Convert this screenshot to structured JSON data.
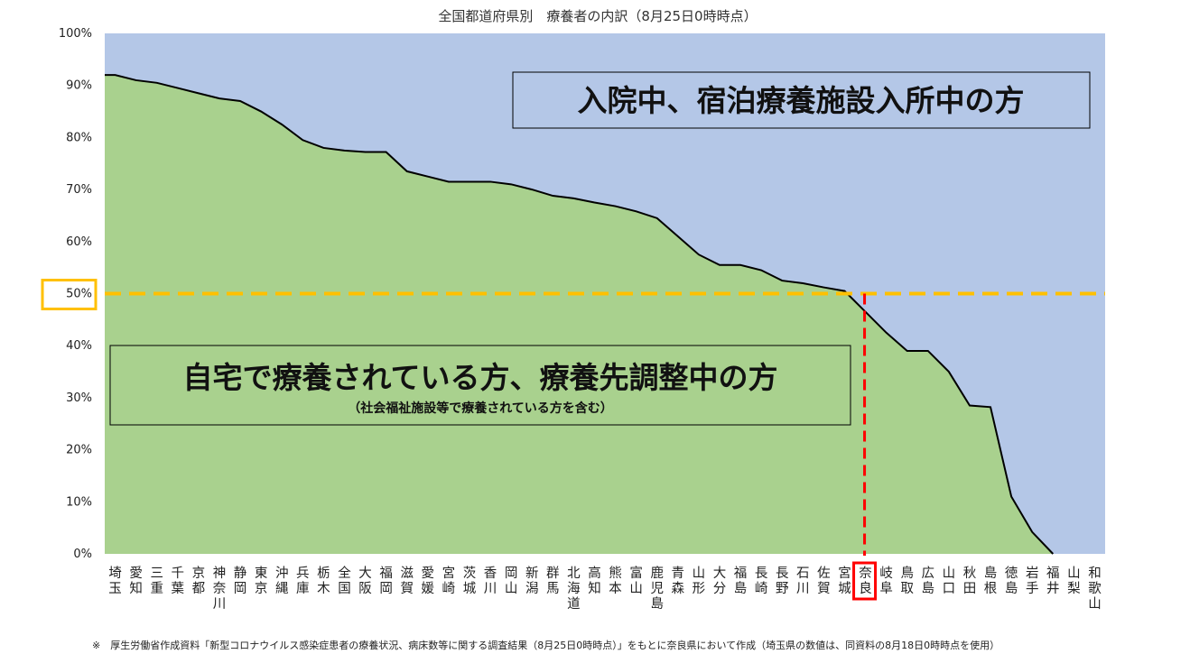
{
  "chart_data": {
    "type": "area",
    "title": "全国都道府県別　療養者の内訳（8月25日0時時点）",
    "ylim": [
      0,
      100
    ],
    "yticks": [
      "0%",
      "10%",
      "20%",
      "30%",
      "40%",
      "50%",
      "60%",
      "70%",
      "80%",
      "90%",
      "100%"
    ],
    "categories": [
      "埼玉",
      "愛知",
      "三重",
      "千葉",
      "京都",
      "神奈川",
      "静岡",
      "東京",
      "沖縄",
      "兵庫",
      "栃木",
      "全国",
      "大阪",
      "福岡",
      "滋賀",
      "愛媛",
      "宮崎",
      "茨城",
      "香川",
      "岡山",
      "新潟",
      "群馬",
      "北海道",
      "高知",
      "熊本",
      "富山",
      "鹿児島",
      "青森",
      "山形",
      "大分",
      "福島",
      "長崎",
      "長野",
      "石川",
      "佐賀",
      "宮城",
      "奈良",
      "岐阜",
      "鳥取",
      "広島",
      "山口",
      "秋田",
      "島根",
      "徳島",
      "岩手",
      "福井",
      "山梨",
      "和歌山"
    ],
    "series": [
      {
        "values": [
          92,
          91,
          90.5,
          89.5,
          88.5,
          87.5,
          87,
          85,
          82.5,
          79.5,
          78,
          77.5,
          77.2,
          77.2,
          73.5,
          72.5,
          71.5,
          71.5,
          71.5,
          71,
          70,
          68.8,
          68.3,
          67.5,
          66.8,
          65.8,
          64.5,
          61,
          57.5,
          55.5,
          55.5,
          54.5,
          52.5,
          52,
          51.2,
          50.5,
          46.5,
          42.5,
          39,
          39,
          35,
          28.5,
          28.2,
          11,
          4.2,
          0,
          0,
          0
        ],
        "color": "#a9d18e"
      },
      {
        "color": "#b4c7e7"
      }
    ],
    "reference_value": 50,
    "highlight_category": "奈良",
    "annotations": [
      "入院中、宿泊療養施設入所中の方",
      "自宅で療養されている方、療養先調整中の方",
      "（社会福祉施設等で療養されている方を含む）"
    ],
    "colors": {
      "reference_line": "#ffc000",
      "highlight": "#ff0000",
      "outline": "#000000"
    }
  },
  "footnote": "※　厚生労働省作成資料「新型コロナウイルス感染症患者の療養状況、病床数等に関する調査結果（8月25日0時時点）」をもとに奈良県において作成（埼玉県の数値は、同資料の8月18日0時時点を使用）"
}
